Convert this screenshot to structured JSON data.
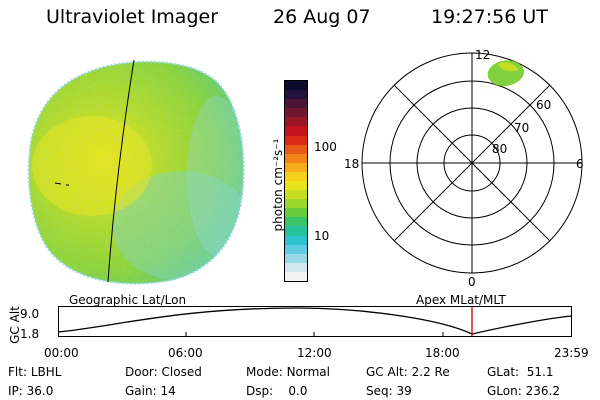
{
  "header": {
    "instrument": "Ultraviolet Imager",
    "date": "26 Aug 07",
    "time": "19:27:56 UT"
  },
  "colorbar": {
    "unit_label": "photon cm⁻²s⁻¹",
    "ticks": [
      "100",
      "10"
    ],
    "colors": [
      "#f2f2f2",
      "#cfe8ee",
      "#9ad9e6",
      "#5fcbe0",
      "#2ec2cf",
      "#26c19d",
      "#3cc46a",
      "#69cc3c",
      "#9bd62c",
      "#c7dd22",
      "#e9e31c",
      "#f3d01a",
      "#f6ac18",
      "#f28418",
      "#ea5a17",
      "#dc2a17",
      "#c2131d",
      "#981526",
      "#70162e",
      "#4a1436",
      "#24103c",
      "#0a0a2c"
    ]
  },
  "polar": {
    "labels": {
      "top": "12",
      "bottom": "0",
      "left": "18",
      "right": "6",
      "ring60": "60",
      "ring70": "70",
      "ring80": "80"
    }
  },
  "image_labels": {
    "left": "Geographic Lat/Lon",
    "right": "Apex MLat/MLT"
  },
  "timeline": {
    "y_title": "GC Alt",
    "y_top": "9.0",
    "y_bottom": "1.8",
    "x_ticks": [
      "00:00",
      "06:00",
      "12:00",
      "18:00",
      "23:59"
    ]
  },
  "footer": {
    "row1": [
      {
        "label": "Flt:",
        "value": "LBHL"
      },
      {
        "label": "Door:",
        "value": "Closed"
      },
      {
        "label": "Mode:",
        "value": "Normal"
      },
      {
        "label": "GC Alt:",
        "value": "2.2 Re"
      },
      {
        "label": "GLat:",
        "value": "51.1"
      }
    ],
    "row2": [
      {
        "label": "IP:",
        "value": "36.0"
      },
      {
        "label": "Gain:",
        "value": "14"
      },
      {
        "label": "Dsp:",
        "value": "0.0"
      },
      {
        "label": "Seq:",
        "value": "39"
      },
      {
        "label": "GLon:",
        "value": "236.2"
      }
    ]
  }
}
